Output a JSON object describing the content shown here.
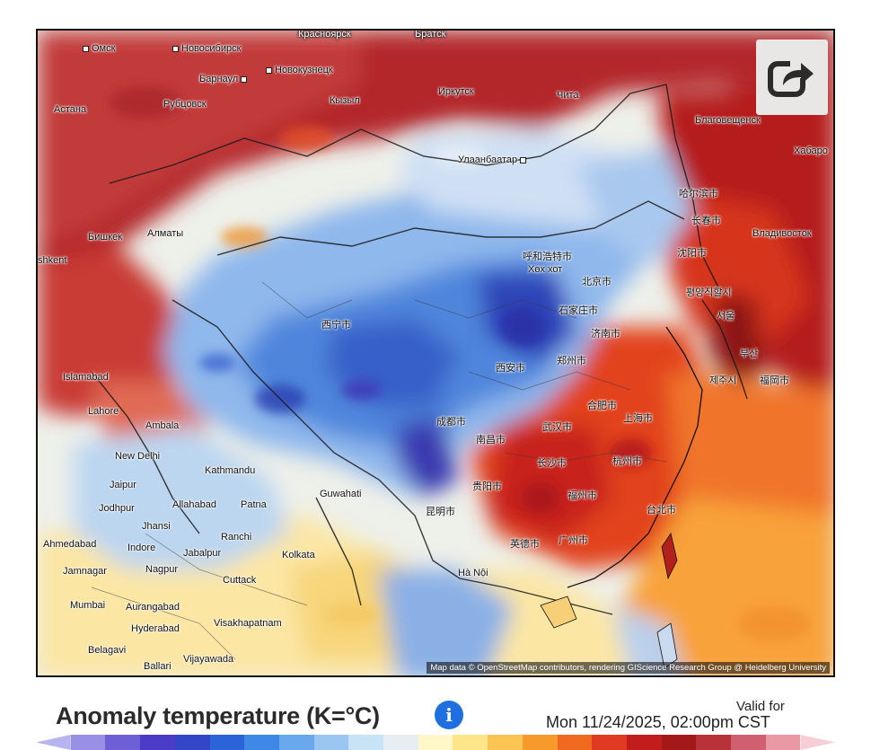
{
  "map": {
    "attribution": "Map data © OpenStreetMap contributors, rendering GIScience Research Group @ Heidelberg University",
    "cities": [
      {
        "name": "Омск",
        "dark": false
      },
      {
        "name": "Новосибирск",
        "dark": false
      },
      {
        "name": "Красноярск",
        "dark": true
      },
      {
        "name": "Братск",
        "dark": true
      },
      {
        "name": "Барнаул",
        "dark": false
      },
      {
        "name": "Новокузнецк",
        "dark": false
      },
      {
        "name": "Астана",
        "dark": false
      },
      {
        "name": "Рубцовск",
        "dark": false
      },
      {
        "name": "Кызыл",
        "dark": false
      },
      {
        "name": "Иркутск",
        "dark": false
      },
      {
        "name": "Чита",
        "dark": false
      },
      {
        "name": "Благовещенск",
        "dark": false
      },
      {
        "name": "Хабаро",
        "dark": false
      },
      {
        "name": "Улаанбаатар",
        "dark": false
      },
      {
        "name": "哈尔滨市",
        "dark": false
      },
      {
        "name": "长春市",
        "dark": false
      },
      {
        "name": "Владивосток",
        "dark": false
      },
      {
        "name": "Бишкек",
        "dark": false
      },
      {
        "name": "Алматы",
        "dark": false
      },
      {
        "name": "shkent",
        "dark": false
      },
      {
        "name": "呼和浩特市",
        "dark": false
      },
      {
        "name": "Хөх хот",
        "dark": false
      },
      {
        "name": "沈阳市",
        "dark": false
      },
      {
        "name": "北京市",
        "dark": false
      },
      {
        "name": "평양직할시",
        "dark": false
      },
      {
        "name": "서울",
        "dark": false
      },
      {
        "name": "石家庄市",
        "dark": false
      },
      {
        "name": "济南市",
        "dark": false
      },
      {
        "name": "부산",
        "dark": false
      },
      {
        "name": "제주시",
        "dark": false
      },
      {
        "name": "福岡市",
        "dark": false
      },
      {
        "name": "西宁市",
        "dark": false
      },
      {
        "name": "西安市",
        "dark": false
      },
      {
        "name": "郑州市",
        "dark": false
      },
      {
        "name": "合肥市",
        "dark": false
      },
      {
        "name": "上海市",
        "dark": false
      },
      {
        "name": "Islamabad",
        "dark": false
      },
      {
        "name": "Lahore",
        "dark": false
      },
      {
        "name": "Ambala",
        "dark": false
      },
      {
        "name": "武汉市",
        "dark": false
      },
      {
        "name": "杭州市",
        "dark": false
      },
      {
        "name": "成都市",
        "dark": false
      },
      {
        "name": "New Delhi",
        "dark": false
      },
      {
        "name": "Kathmandu",
        "dark": false
      },
      {
        "name": "长沙市",
        "dark": false
      },
      {
        "name": "南昌市",
        "dark": false
      },
      {
        "name": "福州市",
        "dark": false
      },
      {
        "name": "Jaipur",
        "dark": false
      },
      {
        "name": "贵阳市",
        "dark": false
      },
      {
        "name": "台北市",
        "dark": false
      },
      {
        "name": "Allahabad",
        "dark": false
      },
      {
        "name": "Patna",
        "dark": false
      },
      {
        "name": "Guwahati",
        "dark": false
      },
      {
        "name": "Jodhpur",
        "dark": false
      },
      {
        "name": "Jhansi",
        "dark": false
      },
      {
        "name": "昆明市",
        "dark": false
      },
      {
        "name": "Ranchi",
        "dark": false
      },
      {
        "name": "广州市",
        "dark": false
      },
      {
        "name": "英德市",
        "dark": false
      },
      {
        "name": "Ahmedabad",
        "dark": false
      },
      {
        "name": "Indore",
        "dark": false
      },
      {
        "name": "Jabalpur",
        "dark": false
      },
      {
        "name": "Kolkata",
        "dark": false
      },
      {
        "name": "Jamnagar",
        "dark": false
      },
      {
        "name": "Nagpur",
        "dark": false
      },
      {
        "name": "Hà Nội",
        "dark": false
      },
      {
        "name": "Cuttack",
        "dark": false
      },
      {
        "name": "Mumbai",
        "dark": false
      },
      {
        "name": "Aurangabad",
        "dark": false
      },
      {
        "name": "Hyderabad",
        "dark": false
      },
      {
        "name": "Visakhapatnam",
        "dark": false
      },
      {
        "name": "Belagavi",
        "dark": false
      },
      {
        "name": "Ballari",
        "dark": false
      },
      {
        "name": "Vijayawada",
        "dark": false
      }
    ]
  },
  "share_icon": "share-arrow-icon",
  "legend": {
    "title": "Anomaly temperature (K=°C)",
    "info_icon": "info-icon",
    "info_glyph": "i",
    "valid_for_label": "Valid for",
    "valid_time": "Mon 11/24/2025, 02:00pm CST",
    "colors": [
      "#b8b4f0",
      "#9a8fe6",
      "#6f5fd6",
      "#4a3cc4",
      "#3346c8",
      "#2b64d8",
      "#3f88e6",
      "#6aa8ee",
      "#9cc6f2",
      "#c8e2f6",
      "#e6eef4",
      "#fff7c8",
      "#fde58a",
      "#fbc453",
      "#f79a2c",
      "#ef6a1e",
      "#e03a22",
      "#c21c1c",
      "#a31818",
      "#b8323a",
      "#d06070",
      "#e998a4",
      "#f6cfd6"
    ]
  },
  "colors": {
    "cold": "#3f6fd8",
    "warm": "#d83020",
    "neutral": "#f2f2ea"
  }
}
